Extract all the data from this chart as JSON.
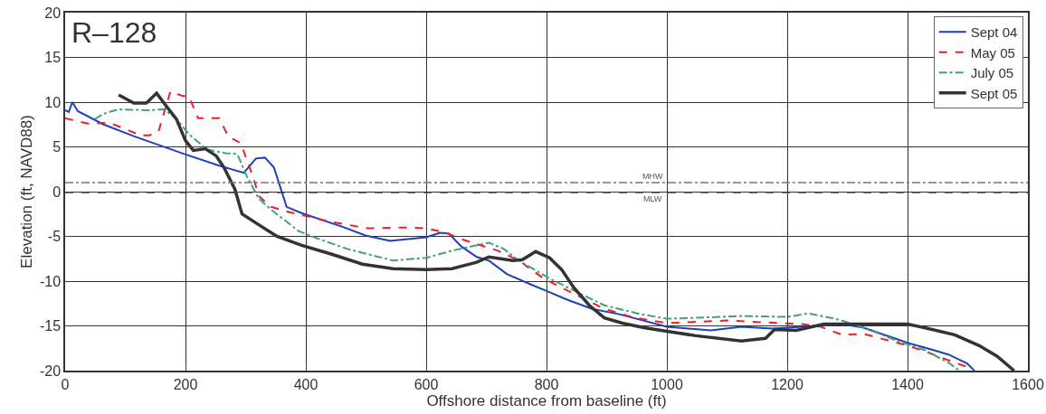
{
  "chart_data": {
    "type": "line",
    "title": "R–128",
    "xlabel": "Offshore distance from baseline (ft)",
    "ylabel": "Elevation (ft, NAVD88)",
    "xlim": [
      0,
      1600
    ],
    "xticks": [
      0,
      200,
      400,
      600,
      800,
      1000,
      1200,
      1400,
      1600
    ],
    "ylim": [
      -20,
      20
    ],
    "yticks": [
      -20,
      -15,
      -10,
      -5,
      0,
      5,
      10,
      15,
      20
    ],
    "grid": true,
    "legend": "top right",
    "marker": "none",
    "ref_lines": [
      {
        "axis": "y",
        "value": 1.0,
        "label": "MHW",
        "color": "#777777",
        "line_style": "dashdot"
      },
      {
        "axis": "y",
        "value": -0.1,
        "label": "MLW",
        "color": "#444444",
        "line_style": "dashed"
      }
    ],
    "series": [
      {
        "name": "Sept 04",
        "color": "#1f3fbf",
        "line_style": "solid",
        "x": [
          0,
          6,
          12,
          21,
          64,
          114,
          198,
          256,
          297,
          317,
          332,
          347,
          368,
          393,
          464,
          499,
          540,
          600,
          623,
          638,
          658,
          684,
          704,
          734,
          775,
          800,
          835,
          876,
          921,
          1000,
          1073,
          1124,
          1175,
          1225,
          1291,
          1327,
          1400,
          1443,
          1468,
          1499,
          1511
        ],
        "values": [
          9.1,
          8.9,
          10,
          9.0,
          7.5,
          6.2,
          4.2,
          2.9,
          2.1,
          3.7,
          3.8,
          2.7,
          -1.7,
          -2.4,
          -4.0,
          -4.9,
          -5.5,
          -5.1,
          -4.6,
          -4.7,
          -6.1,
          -7.3,
          -7.7,
          -9.2,
          -10.4,
          -11.1,
          -12.1,
          -13.1,
          -13.7,
          -15.1,
          -15.5,
          -15.1,
          -15.3,
          -15.1,
          -14.8,
          -15.2,
          -16.9,
          -17.7,
          -18.2,
          -19.2,
          -20
        ]
      },
      {
        "name": "May 05",
        "color": "#e8202a",
        "line_style": "dashed",
        "x": [
          0,
          38,
          74,
          125,
          140,
          155,
          175,
          195,
          206,
          221,
          256,
          271,
          292,
          312,
          322,
          342,
          373,
          443,
          504,
          570,
          600,
          633,
          658,
          719,
          754,
          795,
          845,
          896,
          947,
          1000,
          1099,
          1190,
          1225,
          1256,
          1291,
          1327,
          1400,
          1443,
          1478,
          1504,
          1511
        ],
        "values": [
          8.2,
          7.6,
          7.7,
          6.3,
          6.3,
          6.7,
          11.2,
          10.7,
          10.6,
          8.2,
          8.2,
          6.2,
          5.4,
          1.7,
          -0.5,
          -1.7,
          -2.3,
          -3.4,
          -4.1,
          -4.0,
          -4.1,
          -4.6,
          -5.3,
          -6.6,
          -7.7,
          -9.7,
          -11.4,
          -13.1,
          -14.1,
          -14.7,
          -14.4,
          -14.7,
          -14.8,
          -15.1,
          -16.0,
          -15.9,
          -17.2,
          -18.2,
          -19.1,
          -19.7,
          -20
        ]
      },
      {
        "name": "July 05",
        "color": "#3fa37a",
        "line_style": "dashdot",
        "x": [
          49,
          64,
          89,
          140,
          165,
          185,
          206,
          236,
          266,
          286,
          302,
          322,
          342,
          388,
          418,
          469,
          545,
          600,
          643,
          704,
          729,
          754,
          805,
          856,
          896,
          957,
          1000,
          1048,
          1124,
          1200,
          1235,
          1286,
          1327,
          1388,
          1428,
          1468,
          1484
        ],
        "values": [
          8.1,
          8.7,
          9.2,
          9.1,
          9.2,
          8.1,
          6.4,
          4.7,
          4.3,
          4.2,
          1.7,
          -0.8,
          -2.0,
          -4.4,
          -5.2,
          -6.4,
          -7.7,
          -7.4,
          -6.6,
          -5.7,
          -6.4,
          -7.7,
          -9.7,
          -11.4,
          -12.7,
          -13.7,
          -14.2,
          -14.1,
          -13.9,
          -14.0,
          -13.6,
          -14.3,
          -15.2,
          -16.8,
          -17.7,
          -19.1,
          -19.9
        ]
      },
      {
        "name": "Sept 05",
        "color": "#333333",
        "line_style": "solid",
        "x": [
          89,
          114,
          135,
          152,
          170,
          185,
          200,
          213,
          233,
          251,
          264,
          282,
          294,
          317,
          352,
          393,
          443,
          494,
          545,
          600,
          643,
          684,
          704,
          744,
          760,
          782,
          805,
          825,
          845,
          871,
          896,
          926,
          962,
          1000,
          1048,
          1124,
          1164,
          1179,
          1215,
          1261,
          1327,
          1400,
          1428,
          1478,
          1519,
          1549,
          1577
        ],
        "values": [
          10.8,
          9.9,
          9.9,
          11.0,
          9.4,
          8.1,
          5.7,
          4.6,
          4.8,
          4.0,
          2.7,
          0.3,
          -2.5,
          -3.5,
          -5.0,
          -6.0,
          -7.0,
          -8.1,
          -8.6,
          -8.7,
          -8.6,
          -7.9,
          -7.3,
          -7.7,
          -7.6,
          -6.7,
          -7.4,
          -8.7,
          -10.7,
          -12.7,
          -14.1,
          -14.7,
          -15.2,
          -15.6,
          -16.1,
          -16.7,
          -16.4,
          -15.4,
          -15.5,
          -14.8,
          -14.8,
          -14.8,
          -15.2,
          -16.0,
          -17.2,
          -18.4,
          -20
        ]
      }
    ]
  }
}
